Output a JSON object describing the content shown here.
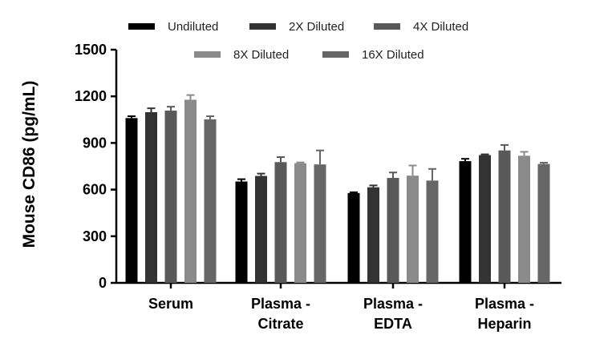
{
  "chart_data": {
    "type": "bar",
    "title": "",
    "xlabel": "",
    "ylabel": "Mouse CD86 (pg/mL)",
    "ylim": [
      0,
      1500
    ],
    "yticks": [
      "0",
      "300",
      "600",
      "900",
      "1200",
      "1500"
    ],
    "categories": [
      [
        "Serum"
      ],
      [
        "Plasma -",
        "Citrate"
      ],
      [
        "Plasma -",
        "EDTA"
      ],
      [
        "Plasma -",
        "Heparin"
      ]
    ],
    "series": [
      {
        "name": "Undiluted",
        "color": "#000000",
        "values": [
          1060,
          652,
          578,
          783
        ],
        "errors": [
          12,
          15,
          5,
          15
        ]
      },
      {
        "name": "2X Diluted",
        "color": "#333333",
        "values": [
          1098,
          688,
          615,
          822
        ],
        "errors": [
          25,
          15,
          12,
          5
        ]
      },
      {
        "name": "4X Diluted",
        "color": "#595959",
        "values": [
          1108,
          777,
          675,
          852
        ],
        "errors": [
          25,
          32,
          35,
          35
        ]
      },
      {
        "name": "8X Diluted",
        "color": "#8a8a8a",
        "values": [
          1178,
          770,
          690,
          818
        ],
        "errors": [
          30,
          5,
          65,
          25
        ]
      },
      {
        "name": "16X Diluted",
        "color": "#666666",
        "values": [
          1052,
          762,
          658,
          765
        ],
        "errors": [
          20,
          90,
          75,
          8
        ]
      }
    ],
    "legend_position": "top",
    "grid": false
  }
}
